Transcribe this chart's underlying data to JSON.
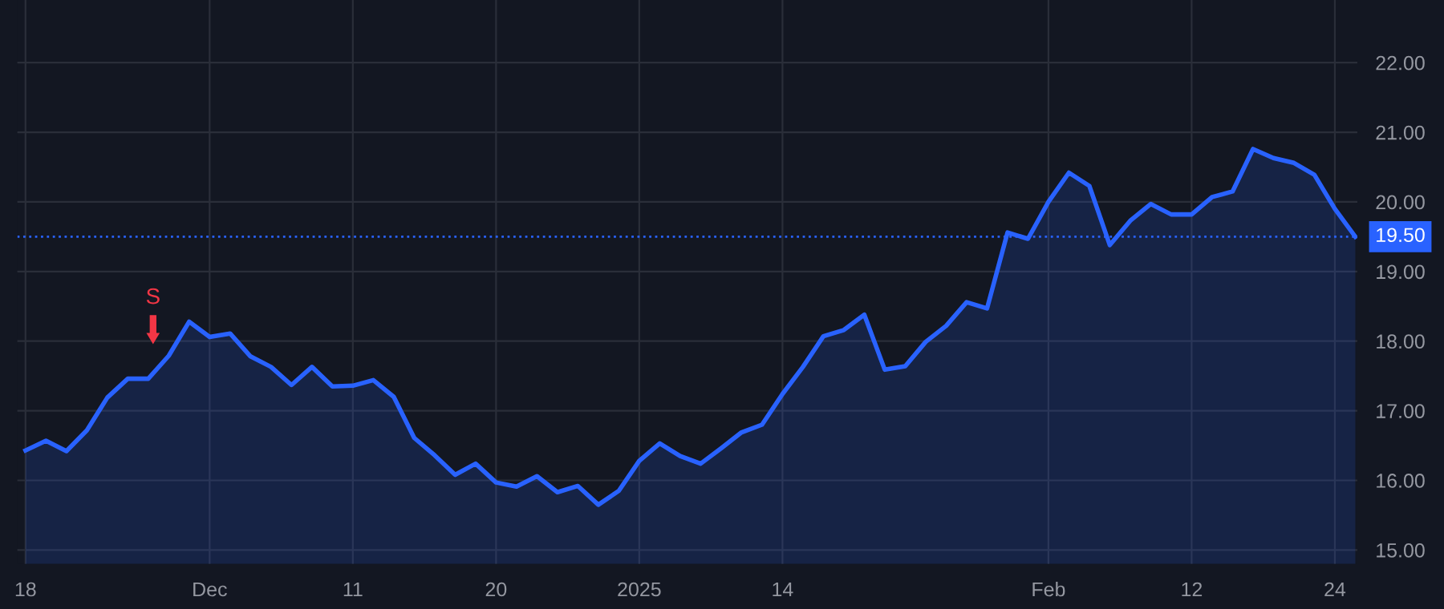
{
  "chart_data": {
    "type": "area",
    "categories": [
      "18",
      null,
      null,
      null,
      null,
      null,
      null,
      null,
      null,
      "Dec",
      null,
      null,
      null,
      null,
      null,
      null,
      "11",
      null,
      null,
      null,
      null,
      null,
      null,
      "20",
      null,
      null,
      null,
      null,
      null,
      null,
      "2025",
      null,
      null,
      null,
      null,
      null,
      null,
      "14",
      null,
      null,
      null,
      null,
      null,
      null,
      null,
      null,
      null,
      null,
      null,
      null,
      "Feb",
      null,
      null,
      null,
      null,
      null,
      null,
      "12",
      null,
      null,
      null,
      null,
      null,
      null,
      "24",
      null
    ],
    "series": [
      {
        "color": "#2962ff",
        "values": [
          16.43,
          16.57,
          16.42,
          16.72,
          17.19,
          17.46,
          17.46,
          17.79,
          18.28,
          18.06,
          18.11,
          17.78,
          17.63,
          17.37,
          17.63,
          17.35,
          17.36,
          17.44,
          17.2,
          16.61,
          16.36,
          16.08,
          16.24,
          15.97,
          15.91,
          16.06,
          15.83,
          15.92,
          15.65,
          15.85,
          16.28,
          16.53,
          16.35,
          16.24,
          16.46,
          16.69,
          16.8,
          17.24,
          17.63,
          18.07,
          18.16,
          18.38,
          17.59,
          17.64,
          17.99,
          18.22,
          18.56,
          18.47,
          19.56,
          19.47,
          20.0,
          20.42,
          20.23,
          19.38,
          19.73,
          19.97,
          19.82,
          19.82,
          20.07,
          20.15,
          20.76,
          20.63,
          20.56,
          20.39,
          19.9,
          19.5
        ]
      }
    ],
    "ylim": [
      14.8,
      22.9
    ],
    "yticks": [
      {
        "value": 15,
        "label": "15.00"
      },
      {
        "value": 16,
        "label": "16.00"
      },
      {
        "value": 17,
        "label": "17.00"
      },
      {
        "value": 18,
        "label": "18.00"
      },
      {
        "value": 19,
        "label": "19.00"
      },
      {
        "value": 20,
        "label": "20.00"
      },
      {
        "value": 21,
        "label": "21.00"
      },
      {
        "value": 22,
        "label": "22.00"
      }
    ],
    "ref_lines": [
      {
        "axis": "y",
        "value": 19.5,
        "label": "19.50",
        "color": "#2962ff",
        "line_style": "dotted"
      }
    ],
    "annotations": [
      "S"
    ],
    "grid": true,
    "legend": false
  }
}
